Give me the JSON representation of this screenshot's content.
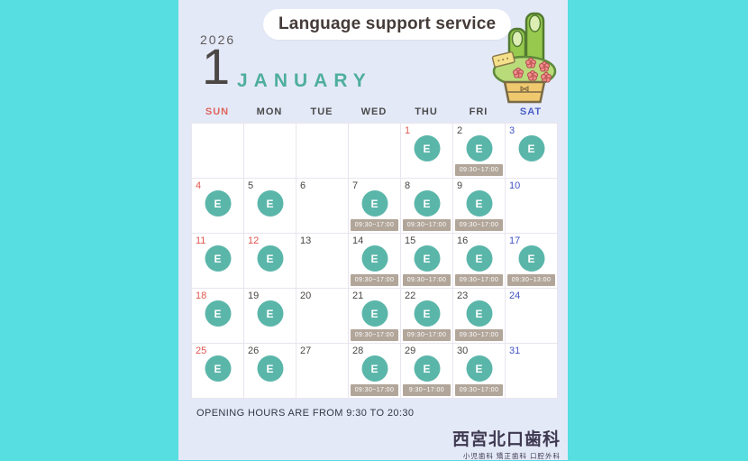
{
  "page": {
    "background_color": "#57DEE1",
    "card_color": "#E4E9F8"
  },
  "header": {
    "title": "Language support service",
    "year": "2026",
    "month_number": "1",
    "month_name": "JANUARY",
    "decoration": "kadomatsu-new-year-icon"
  },
  "weekdays": [
    {
      "label": "SUN",
      "color": "#E0645C"
    },
    {
      "label": "MON",
      "color": "#4A4A4A"
    },
    {
      "label": "TUE",
      "color": "#4A4A4A"
    },
    {
      "label": "WED",
      "color": "#4A4A4A"
    },
    {
      "label": "THU",
      "color": "#4A4A4A"
    },
    {
      "label": "FRI",
      "color": "#4A4A4A"
    },
    {
      "label": "SAT",
      "color": "#4A5EC4"
    }
  ],
  "day_colors": {
    "red": "#E0554E",
    "dark": "#4A4744",
    "blue": "#4153C6"
  },
  "event_marker": {
    "label": "E",
    "color": "#5BB6AA",
    "badge_color": "#B2A69A"
  },
  "calendar": {
    "cells": [
      {
        "n": "",
        "c": "dark",
        "e": false,
        "h": ""
      },
      {
        "n": "",
        "c": "dark",
        "e": false,
        "h": ""
      },
      {
        "n": "",
        "c": "dark",
        "e": false,
        "h": ""
      },
      {
        "n": "",
        "c": "dark",
        "e": false,
        "h": ""
      },
      {
        "n": "1",
        "c": "red",
        "e": true,
        "h": ""
      },
      {
        "n": "2",
        "c": "dark",
        "e": true,
        "h": "09:30~17:00"
      },
      {
        "n": "3",
        "c": "blue",
        "e": true,
        "h": ""
      },
      {
        "n": "4",
        "c": "red",
        "e": true,
        "h": ""
      },
      {
        "n": "5",
        "c": "dark",
        "e": true,
        "h": ""
      },
      {
        "n": "6",
        "c": "dark",
        "e": false,
        "h": ""
      },
      {
        "n": "7",
        "c": "dark",
        "e": true,
        "h": "09:30~17:00"
      },
      {
        "n": "8",
        "c": "dark",
        "e": true,
        "h": "09:30~17:00"
      },
      {
        "n": "9",
        "c": "dark",
        "e": true,
        "h": "09:30~17:00"
      },
      {
        "n": "10",
        "c": "blue",
        "e": false,
        "h": ""
      },
      {
        "n": "11",
        "c": "red",
        "e": true,
        "h": ""
      },
      {
        "n": "12",
        "c": "red",
        "e": true,
        "h": ""
      },
      {
        "n": "13",
        "c": "dark",
        "e": false,
        "h": ""
      },
      {
        "n": "14",
        "c": "dark",
        "e": true,
        "h": "09:30~17:00"
      },
      {
        "n": "15",
        "c": "dark",
        "e": true,
        "h": "09:30~17:00"
      },
      {
        "n": "16",
        "c": "dark",
        "e": true,
        "h": "09:30~17:00"
      },
      {
        "n": "17",
        "c": "blue",
        "e": true,
        "h": "09:30~13:00"
      },
      {
        "n": "18",
        "c": "red",
        "e": true,
        "h": ""
      },
      {
        "n": "19",
        "c": "dark",
        "e": true,
        "h": ""
      },
      {
        "n": "20",
        "c": "dark",
        "e": false,
        "h": ""
      },
      {
        "n": "21",
        "c": "dark",
        "e": true,
        "h": "09:30~17:00"
      },
      {
        "n": "22",
        "c": "dark",
        "e": true,
        "h": "09:30~17:00"
      },
      {
        "n": "23",
        "c": "dark",
        "e": true,
        "h": "09:30~17:00"
      },
      {
        "n": "24",
        "c": "blue",
        "e": false,
        "h": ""
      },
      {
        "n": "25",
        "c": "red",
        "e": true,
        "h": ""
      },
      {
        "n": "26",
        "c": "dark",
        "e": true,
        "h": ""
      },
      {
        "n": "27",
        "c": "dark",
        "e": false,
        "h": ""
      },
      {
        "n": "28",
        "c": "dark",
        "e": true,
        "h": "09:30~17:00"
      },
      {
        "n": "29",
        "c": "dark",
        "e": true,
        "h": "9:30~17:00"
      },
      {
        "n": "30",
        "c": "dark",
        "e": true,
        "h": "09:30~17:00"
      },
      {
        "n": "31",
        "c": "blue",
        "e": false,
        "h": ""
      }
    ]
  },
  "footer": {
    "note": "OPENING HOURS ARE FROM 9:30 TO 20:30",
    "clinic_name": "西宮北口歯科",
    "clinic_subtitle": "小児歯科 矯正歯科 口腔外科"
  }
}
